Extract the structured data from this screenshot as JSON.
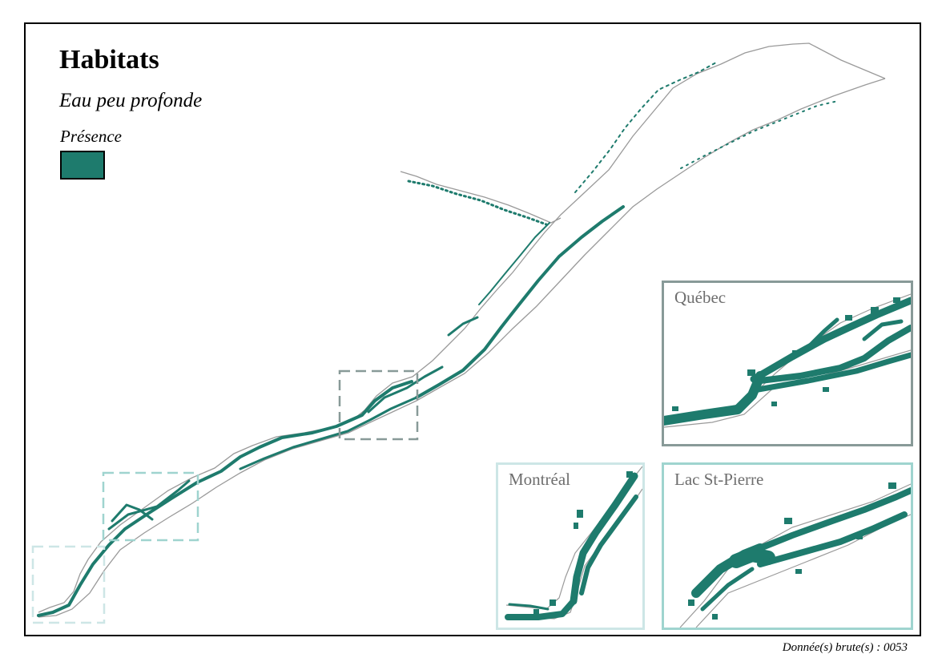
{
  "title": "Habitats",
  "subtitle": "Eau peu profonde",
  "legend": {
    "label": "Présence",
    "color": "#1e7b6d"
  },
  "insets": [
    {
      "label": "Québec",
      "border_color": "#889a98"
    },
    {
      "label": "Montréal",
      "border_color": "#cde6e6"
    },
    {
      "label": "Lac St-Pierre",
      "border_color": "#9fd4cf"
    }
  ],
  "source": "Donnée(s) brute(s) : 0053",
  "colors": {
    "habitat": "#1e7b6d",
    "shoreline": "#9a9a9a"
  }
}
